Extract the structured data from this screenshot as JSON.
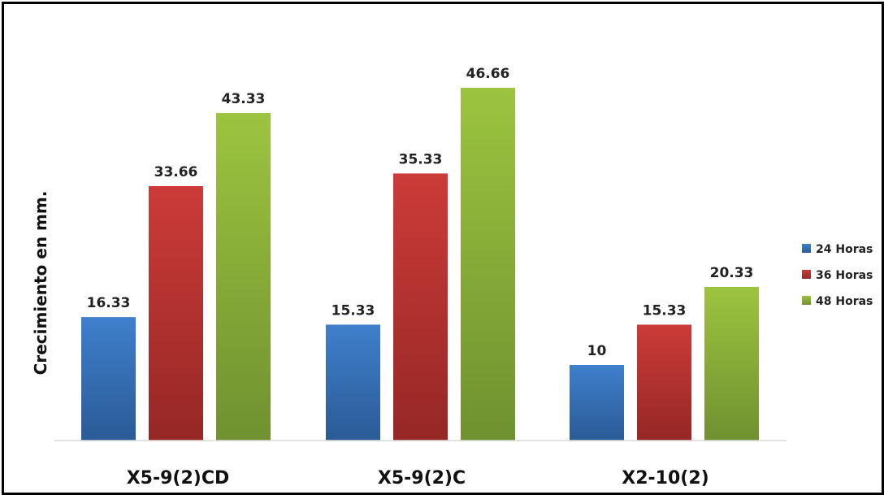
{
  "chart_data": {
    "type": "bar",
    "title": "",
    "xlabel": "",
    "ylabel": "Crecimiento en mm.",
    "categories": [
      "X5-9(2)CD",
      "X5-9(2)C",
      "X2-10(2)"
    ],
    "series": [
      {
        "name": "24 Horas",
        "values": [
          16.33,
          15.33,
          10
        ],
        "labels": [
          "16.33",
          "15.33",
          "10"
        ],
        "color": "#3f7fcc",
        "color_dark": "#2a5b96"
      },
      {
        "name": "36 Horas",
        "values": [
          33.66,
          35.33,
          15.33
        ],
        "labels": [
          "33.66",
          "35.33",
          "15.33"
        ],
        "color": "#cc3b38",
        "color_dark": "#952725"
      },
      {
        "name": "48 Horas",
        "values": [
          43.33,
          46.66,
          20.33
        ],
        "labels": [
          "43.33",
          "46.66",
          "20.33"
        ],
        "color": "#9cc43f",
        "color_dark": "#6f9130"
      }
    ],
    "ylim": [
      0,
      50
    ],
    "grid": false,
    "legend": "right",
    "axis_color": "#d9d9d9"
  }
}
